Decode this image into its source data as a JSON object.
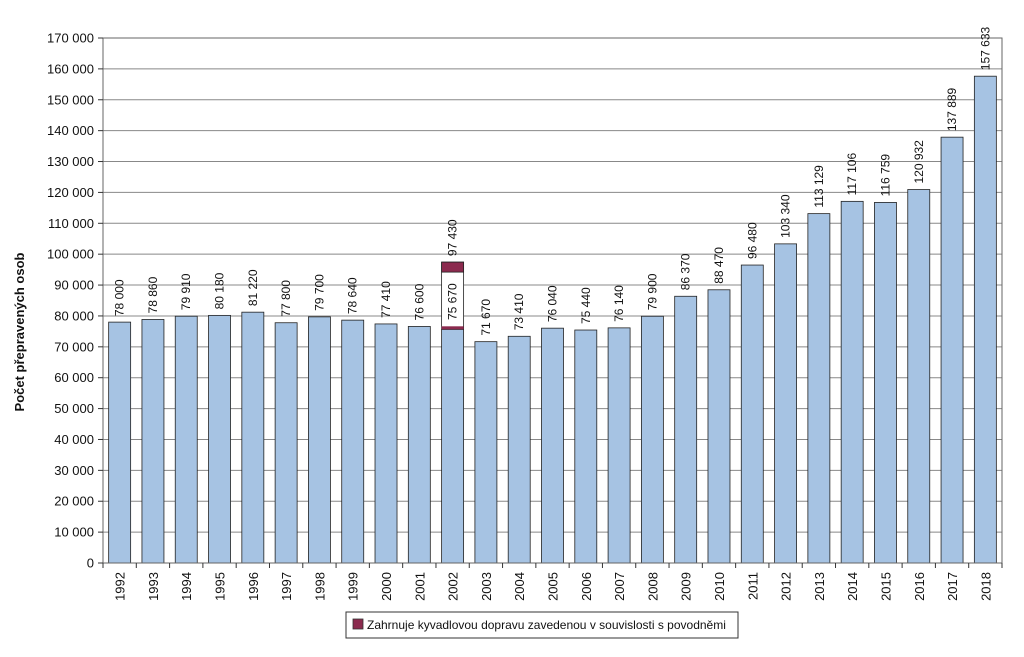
{
  "chart_data": {
    "type": "bar",
    "title": "",
    "xlabel": "",
    "ylabel": "Počet přepravených osob",
    "ylim": [
      0,
      170000
    ],
    "ytick_step": 10000,
    "y_tick_labels": [
      "0",
      "10 000",
      "20 000",
      "30 000",
      "40 000",
      "50 000",
      "60 000",
      "70 000",
      "80 000",
      "90 000",
      "100 000",
      "110 000",
      "120 000",
      "130 000",
      "140 000",
      "150 000",
      "160 000",
      "170 000"
    ],
    "grid": true,
    "categories": [
      "1992",
      "1993",
      "1994",
      "1995",
      "1996",
      "1997",
      "1998",
      "1999",
      "2000",
      "2001",
      "2002",
      "2003",
      "2004",
      "2005",
      "2006",
      "2007",
      "2008",
      "2009",
      "2010",
      "2011",
      "2012",
      "2013",
      "2014",
      "2015",
      "2016",
      "2017",
      "2018"
    ],
    "series": [
      {
        "color": "#a6c3e3",
        "values": [
          78000,
          78860,
          79910,
          80180,
          81220,
          77800,
          79700,
          78640,
          77410,
          76600,
          75670,
          71670,
          73410,
          76040,
          75440,
          76140,
          79900,
          86370,
          88470,
          96480,
          103340,
          113129,
          117106,
          116759,
          120932,
          137889,
          157633
        ],
        "labels": [
          "78 000",
          "78 860",
          "79 910",
          "80 180",
          "81 220",
          "77 800",
          "79 700",
          "78 640",
          "77 410",
          "76 600",
          "75 670",
          "71 670",
          "73 410",
          "76 040",
          "75 440",
          "76 140",
          "79 900",
          "86 370",
          "88 470",
          "96 480",
          "103 340",
          "113 129",
          "117 106",
          "116 759",
          "120 932",
          "137 889",
          "157 633"
        ]
      },
      {
        "name": "Zahrnuje kyvadlovou dopravu zavedenou v souvislosti s povodněmi",
        "color": "#8b2a4e",
        "values": [
          0,
          0,
          0,
          0,
          0,
          0,
          0,
          0,
          0,
          0,
          21760,
          0,
          0,
          0,
          0,
          0,
          0,
          0,
          0,
          0,
          0,
          0,
          0,
          0,
          0,
          0,
          0
        ],
        "total_labels": [
          "",
          "",
          "",
          "",
          "",
          "",
          "",
          "",
          "",
          "",
          "97 430",
          "",
          "",
          "",
          "",
          "",
          "",
          "",
          "",
          "",
          "",
          "",
          "",
          "",
          "",
          "",
          ""
        ]
      }
    ],
    "legend": {
      "placement": "bottom-center"
    }
  }
}
